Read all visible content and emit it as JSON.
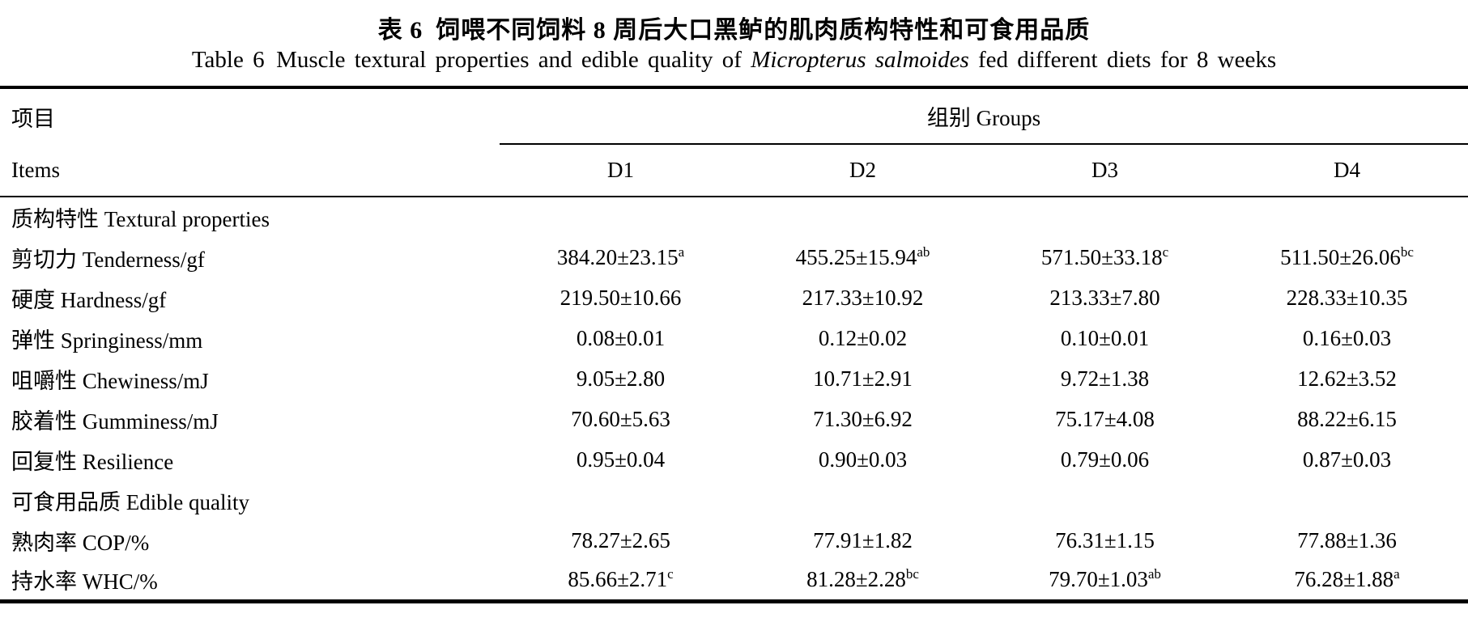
{
  "page": {
    "title_zh": "表 6 饲喂不同饲料 8 周后大口黑鲈的肌肉质构特性和可食用品质",
    "title_en_prefix": "Table 6 Muscle textural properties and edible quality of ",
    "title_en_italic": "Micropterus salmoides",
    "title_en_suffix": " fed different diets for 8 weeks"
  },
  "table": {
    "items_header_zh": "项目",
    "items_header_en": "Items",
    "groups_header": "组别 Groups",
    "group_columns": [
      "D1",
      "D2",
      "D3",
      "D4"
    ],
    "rows": [
      {
        "type": "section",
        "label": "质构特性 Textural properties"
      },
      {
        "type": "data",
        "label": "剪切力 Tenderness/gf",
        "values": [
          {
            "v": "384.20±23.15",
            "sup": "a"
          },
          {
            "v": "455.25±15.94",
            "sup": "ab"
          },
          {
            "v": "571.50±33.18",
            "sup": "c"
          },
          {
            "v": "511.50±26.06",
            "sup": "bc"
          }
        ]
      },
      {
        "type": "data",
        "label": "硬度 Hardness/gf",
        "values": [
          {
            "v": "219.50±10.66",
            "sup": ""
          },
          {
            "v": "217.33±10.92",
            "sup": ""
          },
          {
            "v": "213.33±7.80",
            "sup": ""
          },
          {
            "v": "228.33±10.35",
            "sup": ""
          }
        ]
      },
      {
        "type": "data",
        "label": "弹性 Springiness/mm",
        "values": [
          {
            "v": "0.08±0.01",
            "sup": ""
          },
          {
            "v": "0.12±0.02",
            "sup": ""
          },
          {
            "v": "0.10±0.01",
            "sup": ""
          },
          {
            "v": "0.16±0.03",
            "sup": ""
          }
        ]
      },
      {
        "type": "data",
        "label": "咀嚼性 Chewiness/mJ",
        "values": [
          {
            "v": "9.05±2.80",
            "sup": ""
          },
          {
            "v": "10.71±2.91",
            "sup": ""
          },
          {
            "v": "9.72±1.38",
            "sup": ""
          },
          {
            "v": "12.62±3.52",
            "sup": ""
          }
        ]
      },
      {
        "type": "data",
        "label": "胶着性 Gumminess/mJ",
        "values": [
          {
            "v": "70.60±5.63",
            "sup": ""
          },
          {
            "v": "71.30±6.92",
            "sup": ""
          },
          {
            "v": "75.17±4.08",
            "sup": ""
          },
          {
            "v": "88.22±6.15",
            "sup": ""
          }
        ]
      },
      {
        "type": "data",
        "label": "回复性 Resilience",
        "values": [
          {
            "v": "0.95±0.04",
            "sup": ""
          },
          {
            "v": "0.90±0.03",
            "sup": ""
          },
          {
            "v": "0.79±0.06",
            "sup": ""
          },
          {
            "v": "0.87±0.03",
            "sup": ""
          }
        ]
      },
      {
        "type": "section",
        "label": "可食用品质 Edible quality"
      },
      {
        "type": "data",
        "label": "熟肉率 COP/%",
        "values": [
          {
            "v": "78.27±2.65",
            "sup": ""
          },
          {
            "v": "77.91±1.82",
            "sup": ""
          },
          {
            "v": "76.31±1.15",
            "sup": ""
          },
          {
            "v": "77.88±1.36",
            "sup": ""
          }
        ]
      },
      {
        "type": "data",
        "label": "持水率 WHC/%",
        "values": [
          {
            "v": "85.66±2.71",
            "sup": "c"
          },
          {
            "v": "81.28±2.28",
            "sup": "bc"
          },
          {
            "v": "79.70±1.03",
            "sup": "ab"
          },
          {
            "v": "76.28±1.88",
            "sup": "a"
          }
        ]
      }
    ]
  },
  "chart_data": {
    "type": "table",
    "title": "Table 6 Muscle textural properties and edible quality of Micropterus salmoides fed different diets for 8 weeks",
    "columns": [
      "Items",
      "D1",
      "D2",
      "D3",
      "D4"
    ],
    "rows": [
      [
        "质构特性 Textural properties",
        "",
        "",
        "",
        ""
      ],
      [
        "剪切力 Tenderness/gf",
        "384.20±23.15 a",
        "455.25±15.94 ab",
        "571.50±33.18 c",
        "511.50±26.06 bc"
      ],
      [
        "硬度 Hardness/gf",
        "219.50±10.66",
        "217.33±10.92",
        "213.33±7.80",
        "228.33±10.35"
      ],
      [
        "弹性 Springiness/mm",
        "0.08±0.01",
        "0.12±0.02",
        "0.10±0.01",
        "0.16±0.03"
      ],
      [
        "咀嚼性 Chewiness/mJ",
        "9.05±2.80",
        "10.71±2.91",
        "9.72±1.38",
        "12.62±3.52"
      ],
      [
        "胶着性 Gumminess/mJ",
        "70.60±5.63",
        "71.30±6.92",
        "75.17±4.08",
        "88.22±6.15"
      ],
      [
        "回复性 Resilience",
        "0.95±0.04",
        "0.90±0.03",
        "0.79±0.06",
        "0.87±0.03"
      ],
      [
        "可食用品质 Edible quality",
        "",
        "",
        "",
        ""
      ],
      [
        "熟肉率 COP/%",
        "78.27±2.65",
        "77.91±1.82",
        "76.31±1.15",
        "77.88±1.36"
      ],
      [
        "持水率 WHC/%",
        "85.66±2.71 c",
        "81.28±2.28 bc",
        "79.70±1.03 ab",
        "76.28±1.88 a"
      ]
    ]
  }
}
